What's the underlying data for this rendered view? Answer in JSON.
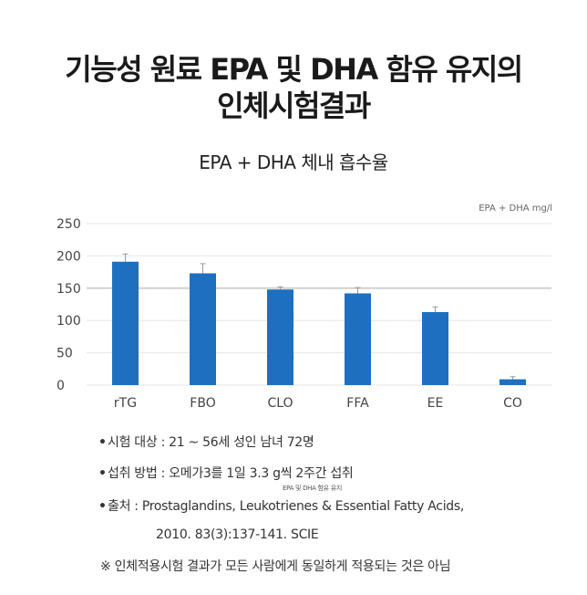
{
  "title_line1": "기능성 원료 EPA 및 DHA 함유 유지의",
  "title_line2": "인체시험결과",
  "chart_data": {
    "type": "bar",
    "title": "EPA + DHA 체내 흡수율",
    "unit_label": "EPA + DHA mg/l",
    "categories": [
      "rTG",
      "FBO",
      "CLO",
      "FFA",
      "EE",
      "CO"
    ],
    "values": [
      191,
      173,
      148,
      142,
      113,
      9
    ],
    "error": [
      12,
      15,
      4,
      9,
      8,
      4
    ],
    "ylim": [
      0,
      250
    ],
    "yticks": [
      "0",
      "50",
      "100",
      "150",
      "200",
      "250"
    ],
    "bar_color": "#1e6fc0",
    "grid": true
  },
  "notes": {
    "subjects": "시험 대상 : 21 ~ 56세 성인 남녀 72명",
    "intake": "섭취 방법 : 오메가3를 1일 3.3 g씩 2주간 섭취",
    "intake_small": "EPA 및 DHA 함유 유지",
    "source": "출처 : Prostaglandins, Leukotrienes & Essential Fatty Acids,",
    "source_detail": "2010. 83(3):137-141. SCIE",
    "bullet": "•"
  },
  "disclaimer": "※ 인체적용시험 결과가 모든 사람에게 동일하게 적용되는 것은 아님"
}
